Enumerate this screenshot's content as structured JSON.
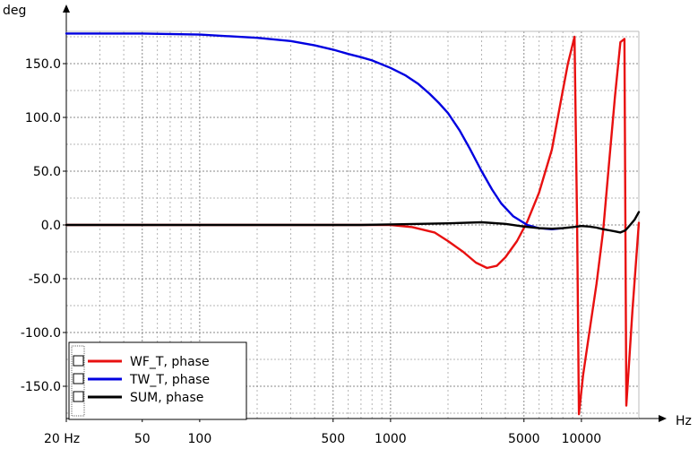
{
  "chart_data": {
    "type": "line",
    "y_unit": "deg",
    "x_unit": "Hz",
    "x_scale": "log",
    "xlim": [
      20,
      20000
    ],
    "ylim": [
      -180,
      180
    ],
    "grid": true,
    "legend_position": "bottom-left",
    "x_ticks": [
      {
        "value": 20,
        "label": "20 Hz"
      },
      {
        "value": 50,
        "label": "50"
      },
      {
        "value": 100,
        "label": "100"
      },
      {
        "value": 500,
        "label": "500"
      },
      {
        "value": 1000,
        "label": "1000"
      },
      {
        "value": 5000,
        "label": "5000"
      },
      {
        "value": 10000,
        "label": "10000"
      }
    ],
    "y_ticks": [
      {
        "value": 150,
        "label": "150.0"
      },
      {
        "value": 100,
        "label": "100.0"
      },
      {
        "value": 50,
        "label": "50.0"
      },
      {
        "value": 0,
        "label": "0.0"
      },
      {
        "value": -50,
        "label": "-50.0"
      },
      {
        "value": -100,
        "label": "-100.0"
      },
      {
        "value": -150,
        "label": "-150.0"
      }
    ],
    "series": [
      {
        "name": "WF_T, phase",
        "color": "#e81010",
        "x": [
          20,
          300,
          700,
          1000,
          1300,
          1700,
          2000,
          2400,
          2800,
          3200,
          3600,
          4000,
          4600,
          5200,
          6000,
          7000,
          7800,
          8500,
          9200,
          9500,
          9700,
          10200,
          11000,
          12000,
          13000,
          14000,
          15000,
          16000,
          16800,
          17200,
          18500,
          20000
        ],
        "y": [
          0,
          0,
          0,
          0,
          -2,
          -7,
          -15,
          -25,
          -35,
          -40,
          -38,
          -30,
          -15,
          3,
          30,
          70,
          115,
          150,
          175,
          0,
          -176,
          -140,
          -100,
          -55,
          -5,
          60,
          120,
          170,
          173,
          -168,
          -80,
          2
        ]
      },
      {
        "name": "TW_T, phase",
        "color": "#0000e0",
        "x": [
          20,
          50,
          100,
          200,
          300,
          400,
          500,
          600,
          700,
          800,
          1000,
          1200,
          1400,
          1600,
          1800,
          2000,
          2300,
          2600,
          3000,
          3400,
          3800,
          4400,
          5200,
          6000,
          7000,
          8000
        ],
        "y": [
          178,
          178,
          177,
          174,
          171,
          167,
          163,
          159,
          156,
          153,
          146,
          139,
          131,
          122,
          113,
          104,
          88,
          71,
          50,
          33,
          20,
          8,
          0,
          -3,
          -4,
          -3
        ]
      },
      {
        "name": "SUM, phase",
        "color": "#000000",
        "x": [
          20,
          700,
          1000,
          2000,
          3000,
          4000,
          5000,
          6000,
          7000,
          8000,
          9000,
          10000,
          11000,
          12000,
          13000,
          14000,
          15000,
          16000,
          17000,
          18000,
          19000,
          20000
        ],
        "y": [
          0,
          0,
          0.5,
          1.5,
          2.5,
          1,
          -1.5,
          -3,
          -3.5,
          -3,
          -2,
          -1,
          -1.5,
          -2.5,
          -4,
          -5,
          -6,
          -7,
          -5,
          0,
          5,
          12
        ]
      }
    ]
  }
}
